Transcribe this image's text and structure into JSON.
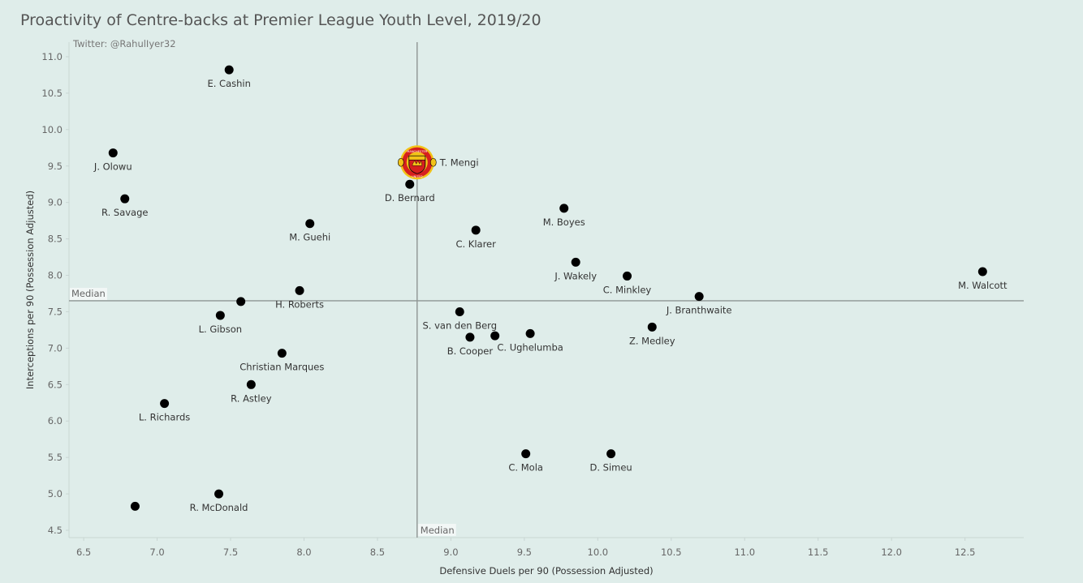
{
  "chart_data": {
    "type": "scatter",
    "title": "Proactivity of Centre-backs at Premier League Youth Level, 2019/20",
    "credit": "Twitter: @RahulIyer32",
    "xlabel": "Defensive Duels per 90 (Possession Adjusted)",
    "ylabel": "Interceptions per 90 (Possession Adjusted)",
    "xlim": [
      6.4,
      12.9
    ],
    "ylim": [
      4.4,
      11.2
    ],
    "xticks": [
      "6.5",
      "7.0",
      "7.5",
      "8.0",
      "8.5",
      "9.0",
      "9.5",
      "10.0",
      "10.5",
      "11.0",
      "11.5",
      "12.0",
      "12.5"
    ],
    "yticks": [
      "4.5",
      "5.0",
      "5.5",
      "6.0",
      "6.5",
      "7.0",
      "7.5",
      "8.0",
      "8.5",
      "9.0",
      "9.5",
      "10.0",
      "10.5",
      "11.0"
    ],
    "median": {
      "x": 8.77,
      "y": 7.65,
      "label_x": "Median",
      "label_y": "Median"
    },
    "highlight": {
      "name": "T. Mengi",
      "x": 8.77,
      "y": 9.55,
      "marker": "manchester-united-crest",
      "crest_text": "MANCHESTER UNITED"
    },
    "points": [
      {
        "name": "E. Cashin",
        "x": 7.49,
        "y": 10.82
      },
      {
        "name": "J. Olowu",
        "x": 6.7,
        "y": 9.68
      },
      {
        "name": "R. Savage",
        "x": 6.78,
        "y": 9.05
      },
      {
        "name": "D. Bernard",
        "x": 8.72,
        "y": 9.25
      },
      {
        "name": "M. Guehi",
        "x": 8.04,
        "y": 8.71
      },
      {
        "name": "M. Boyes",
        "x": 9.77,
        "y": 8.92
      },
      {
        "name": "C. Klarer",
        "x": 9.17,
        "y": 8.62
      },
      {
        "name": "J. Wakely",
        "x": 9.85,
        "y": 8.18
      },
      {
        "name": "C. Minkley",
        "x": 10.2,
        "y": 7.99
      },
      {
        "name": "M. Walcott",
        "x": 12.62,
        "y": 8.05
      },
      {
        "name": "J. Branthwaite",
        "x": 10.69,
        "y": 7.71
      },
      {
        "name": "H. Roberts",
        "x": 7.97,
        "y": 7.79
      },
      {
        "name": "L. Gibson",
        "x": 7.43,
        "y": 7.45
      },
      {
        "name": "",
        "x": 7.57,
        "y": 7.64
      },
      {
        "name": "S. van den Berg",
        "x": 9.06,
        "y": 7.5
      },
      {
        "name": "B. Cooper",
        "x": 9.13,
        "y": 7.15
      },
      {
        "name": "C. Ughelumba",
        "x": 9.54,
        "y": 7.2
      },
      {
        "name": "",
        "x": 9.3,
        "y": 7.17
      },
      {
        "name": "Z. Medley",
        "x": 10.37,
        "y": 7.29
      },
      {
        "name": "Christian Marques",
        "x": 7.85,
        "y": 6.93
      },
      {
        "name": "R. Astley",
        "x": 7.64,
        "y": 6.5
      },
      {
        "name": "L. Richards",
        "x": 7.05,
        "y": 6.24
      },
      {
        "name": "C. Mola",
        "x": 9.51,
        "y": 5.55
      },
      {
        "name": "D. Simeu",
        "x": 10.09,
        "y": 5.55
      },
      {
        "name": "R. McDonald",
        "x": 7.42,
        "y": 5.0
      },
      {
        "name": "",
        "x": 6.85,
        "y": 4.83
      }
    ]
  }
}
